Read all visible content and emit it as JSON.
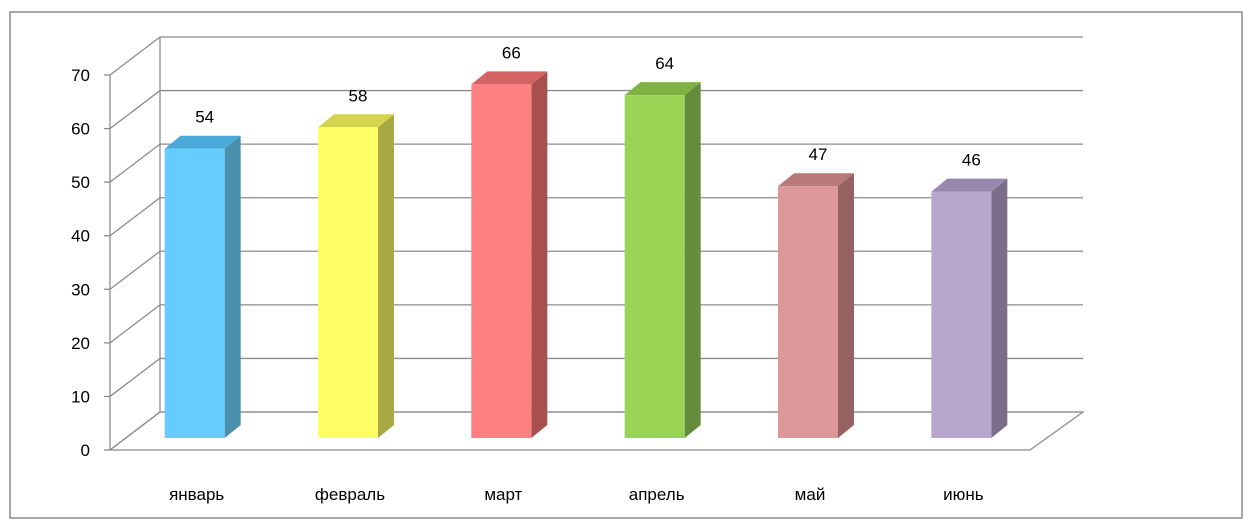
{
  "chart_data": {
    "type": "bar",
    "categories": [
      "январь",
      "февраль",
      "март",
      "апрель",
      "май",
      "июнь"
    ],
    "values": [
      54,
      58,
      66,
      64,
      47,
      46
    ],
    "ylim": [
      0,
      70
    ],
    "yticks": [
      0,
      10,
      20,
      30,
      40,
      50,
      60,
      70
    ],
    "grid": true,
    "legend": "none",
    "title": "",
    "xlabel": "",
    "ylabel": "",
    "colors": [
      {
        "front": "#66ccff",
        "side": "#4a8fae",
        "top": "#4aa9d8"
      },
      {
        "front": "#ffff66",
        "side": "#a8a845",
        "top": "#d4d44c"
      },
      {
        "front": "#ff8080",
        "side": "#a85050",
        "top": "#d46464"
      },
      {
        "front": "#99d455",
        "side": "#648c3a",
        "top": "#7eb344"
      },
      {
        "front": "#dd9999",
        "side": "#966262",
        "top": "#b87a7a"
      },
      {
        "front": "#b8a6cc",
        "side": "#7a6e8a",
        "top": "#9988ad"
      }
    ]
  }
}
